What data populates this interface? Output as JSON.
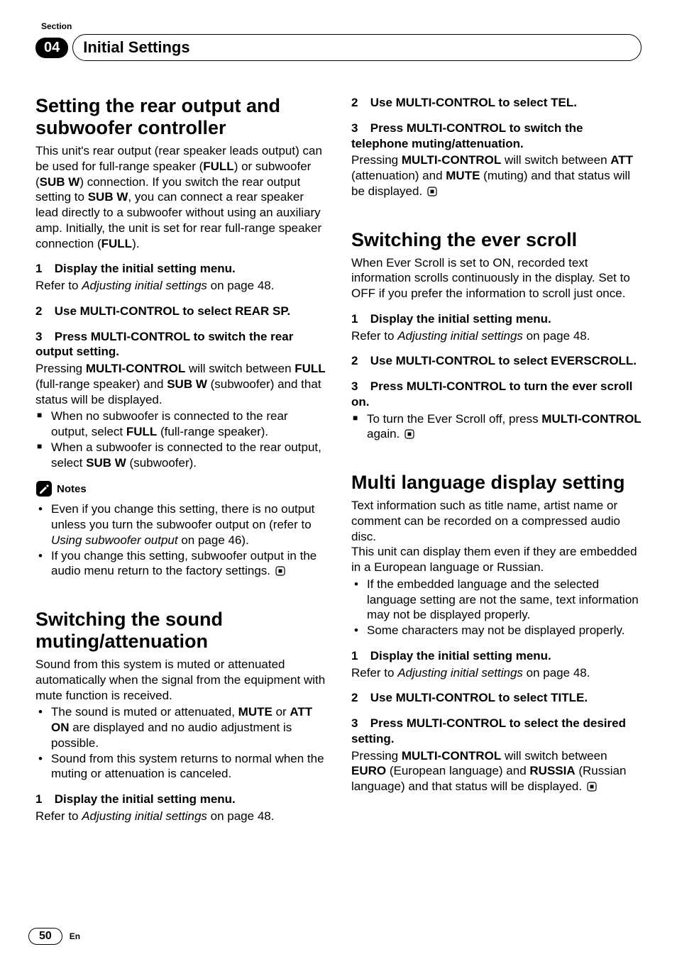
{
  "page": {
    "number": "50",
    "lang_code": "En",
    "section_word": "Section",
    "chapter_number": "04",
    "chapter_title": "Initial Settings"
  },
  "colors": {
    "text": "#000000",
    "bg": "#ffffff",
    "badge_bg": "#000000",
    "badge_fg": "#ffffff"
  },
  "typography": {
    "heading_size_pt": 20,
    "body_size_pt": 12
  },
  "left": {
    "sec1": {
      "heading": "Setting the rear output and subwoofer controller",
      "intro_parts": [
        {
          "t": "This unit's rear output (rear speaker leads output) can be used for full-range speaker (",
          "b": false
        },
        {
          "t": "FULL",
          "b": true
        },
        {
          "t": ") or subwoofer (",
          "b": false
        },
        {
          "t": "SUB W",
          "b": true
        },
        {
          "t": ") connection. If you switch the rear output setting to ",
          "b": false
        },
        {
          "t": "SUB W",
          "b": true
        },
        {
          "t": ", you can connect a rear speaker lead directly to a subwoofer without using an auxiliary amp. Initially, the unit is set for rear full-range speaker connection (",
          "b": false
        },
        {
          "t": "FULL",
          "b": true
        },
        {
          "t": ").",
          "b": false
        }
      ],
      "step1_num": "1",
      "step1_title": "Display the initial setting menu.",
      "step1_refer_pre": "Refer to ",
      "step1_refer_it": "Adjusting initial settings",
      "step1_refer_post": " on page 48.",
      "step2_num": "2",
      "step2_title": "Use MULTI-CONTROL to select REAR SP.",
      "step3_num": "3",
      "step3_title": "Press MULTI-CONTROL to switch the rear output setting.",
      "step3_body_parts": [
        {
          "t": "Pressing ",
          "b": false
        },
        {
          "t": "MULTI-CONTROL",
          "b": true
        },
        {
          "t": " will switch between ",
          "b": false
        },
        {
          "t": "FULL",
          "b": true
        },
        {
          "t": " (full-range speaker) and ",
          "b": false
        },
        {
          "t": "SUB W",
          "b": true
        },
        {
          "t": " (subwoofer) and that status will be displayed.",
          "b": false
        }
      ],
      "sq1_parts": [
        {
          "t": "When no subwoofer is connected to the rear output, select ",
          "b": false
        },
        {
          "t": "FULL",
          "b": true
        },
        {
          "t": " (full-range speaker).",
          "b": false
        }
      ],
      "sq2_parts": [
        {
          "t": "When a subwoofer is connected to the rear output, select ",
          "b": false
        },
        {
          "t": "SUB W",
          "b": true
        },
        {
          "t": " (subwoofer).",
          "b": false
        }
      ],
      "notes_word": "Notes",
      "note1_pre": "Even if you change this setting, there is no output unless you turn the subwoofer output on (refer to ",
      "note1_it": "Using subwoofer output",
      "note1_post": " on page 46).",
      "note2": "If you change this setting, subwoofer output in the audio menu return to the factory settings."
    },
    "sec2": {
      "heading": "Switching the sound muting/attenuation",
      "intro": "Sound from this system is muted or attenuated automatically when the signal from the equipment with mute function is received.",
      "b1_parts": [
        {
          "t": "The sound is muted or attenuated, ",
          "b": false
        },
        {
          "t": "MUTE",
          "b": true
        },
        {
          "t": " or ",
          "b": false
        },
        {
          "t": "ATT ON",
          "b": true
        },
        {
          "t": " are displayed and no audio adjustment is possible.",
          "b": false
        }
      ],
      "b2": "Sound from this system returns to normal when the muting or attenuation is canceled.",
      "step1_num": "1",
      "step1_title": "Display the initial setting menu.",
      "step1_refer_pre": "Refer to ",
      "step1_refer_it": "Adjusting initial settings",
      "step1_refer_post": " on page 48."
    }
  },
  "right": {
    "sec2cont": {
      "step2_num": "2",
      "step2_title": "Use MULTI-CONTROL to select TEL.",
      "step3_num": "3",
      "step3_title": "Press MULTI-CONTROL to switch the telephone muting/attenuation.",
      "step3_body_parts": [
        {
          "t": "Pressing ",
          "b": false
        },
        {
          "t": "MULTI-CONTROL",
          "b": true
        },
        {
          "t": " will switch between ",
          "b": false
        },
        {
          "t": "ATT",
          "b": true
        },
        {
          "t": " (attenuation) and ",
          "b": false
        },
        {
          "t": "MUTE",
          "b": true
        },
        {
          "t": " (muting) and that status will be displayed.",
          "b": false
        }
      ]
    },
    "sec3": {
      "heading": "Switching the ever scroll",
      "intro": "When Ever Scroll is set to ON, recorded text information scrolls continuously in the display. Set to OFF if you prefer the information to scroll just once.",
      "step1_num": "1",
      "step1_title": "Display the initial setting menu.",
      "step1_refer_pre": "Refer to ",
      "step1_refer_it": "Adjusting initial settings",
      "step1_refer_post": " on page 48.",
      "step2_num": "2",
      "step2_title": "Use MULTI-CONTROL to select EVERSCROLL.",
      "step3_num": "3",
      "step3_title": "Press MULTI-CONTROL to turn the ever scroll on.",
      "sq1_parts": [
        {
          "t": "To turn the Ever Scroll off, press ",
          "b": false
        },
        {
          "t": "MULTI-CONTROL",
          "b": true
        },
        {
          "t": " again.",
          "b": false
        }
      ]
    },
    "sec4": {
      "heading": "Multi language display setting",
      "intro1": "Text information such as title name, artist name or comment can be recorded on a compressed audio disc.",
      "intro2": "This unit can display them even if they are embedded in a European language or Russian.",
      "b1": "If the embedded language and the selected language setting are not the same, text information may not be displayed properly.",
      "b2": "Some characters may not be displayed properly.",
      "step1_num": "1",
      "step1_title": "Display the initial setting menu.",
      "step1_refer_pre": "Refer to ",
      "step1_refer_it": "Adjusting initial settings",
      "step1_refer_post": " on page 48.",
      "step2_num": "2",
      "step2_title": "Use MULTI-CONTROL to select TITLE.",
      "step3_num": "3",
      "step3_title": "Press MULTI-CONTROL to select the desired setting.",
      "step3_body_parts": [
        {
          "t": "Pressing ",
          "b": false
        },
        {
          "t": "MULTI-CONTROL",
          "b": true
        },
        {
          "t": " will switch between ",
          "b": false
        },
        {
          "t": "EURO",
          "b": true
        },
        {
          "t": " (European language) and ",
          "b": false
        },
        {
          "t": "RUSSIA",
          "b": true
        },
        {
          "t": " (Russian language) and that status will be displayed.",
          "b": false
        }
      ]
    }
  }
}
